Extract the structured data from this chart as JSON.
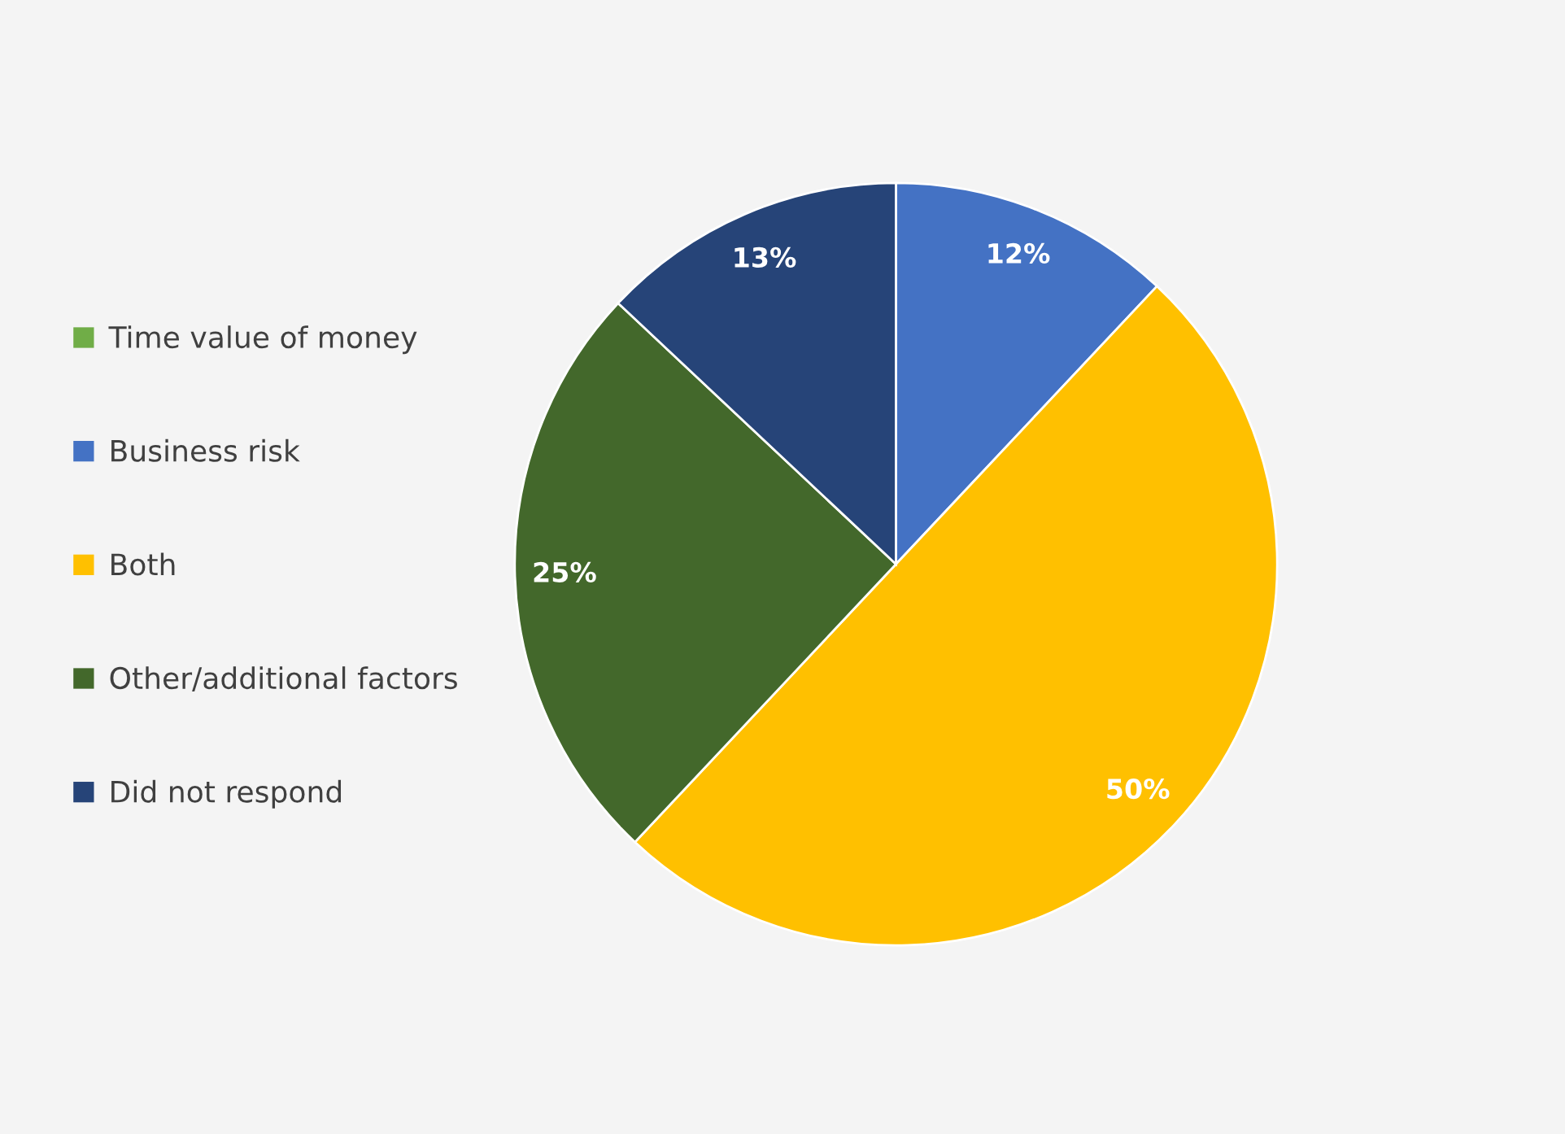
{
  "chart_data": {
    "type": "pie",
    "categories": [
      "Time value of money",
      "Business risk",
      "Both",
      "Other/additional factors",
      "Did not respond"
    ],
    "values": [
      0,
      12,
      50,
      25,
      13
    ],
    "colors": [
      "#70ad47",
      "#4472c4",
      "#ffc000",
      "#43682b",
      "#264478"
    ],
    "value_labels": [
      null,
      "12%",
      "50%",
      "25%",
      "13%"
    ],
    "legend": "left"
  }
}
